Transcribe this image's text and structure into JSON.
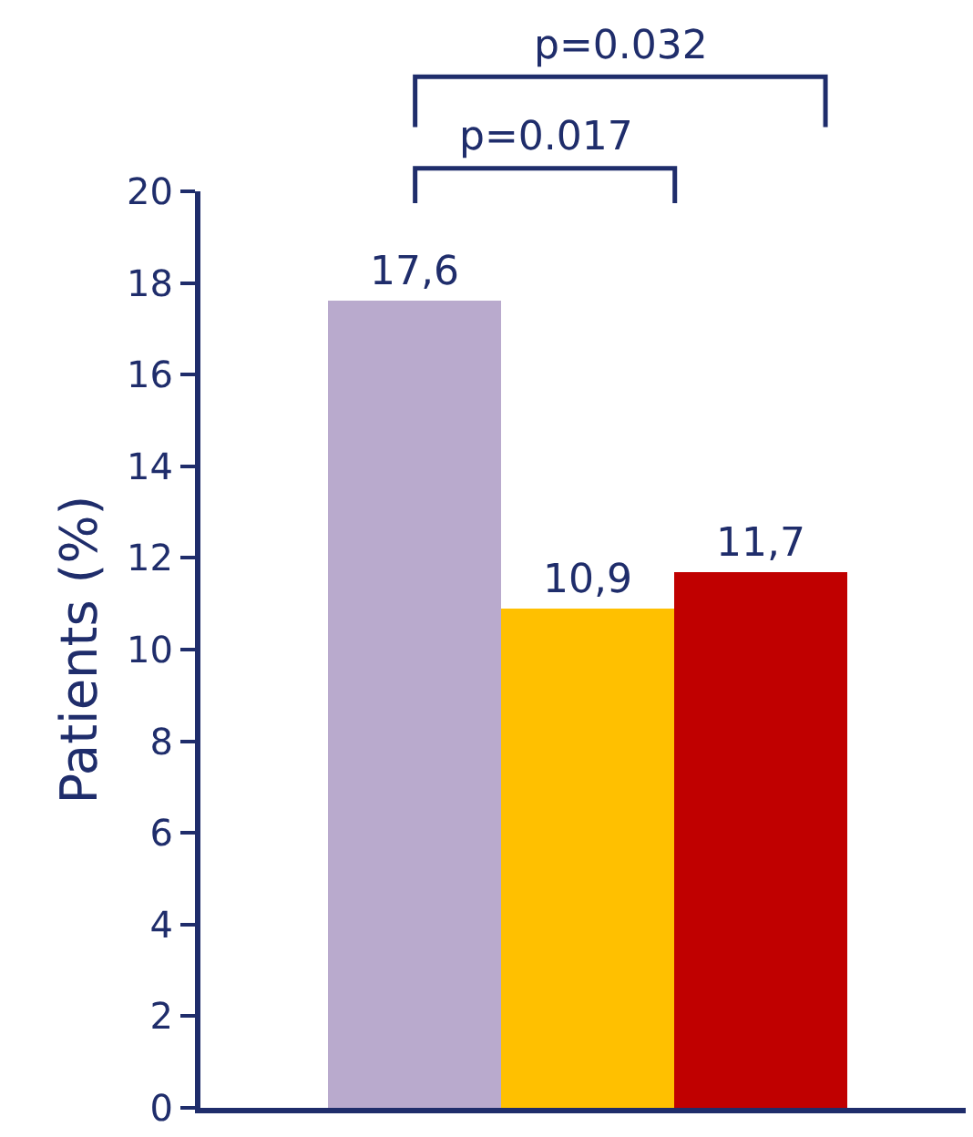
{
  "chart_data": {
    "type": "bar",
    "ylabel": "Patients (%)",
    "categories": [
      null,
      null,
      null
    ],
    "values": [
      17.6,
      10.9,
      11.7
    ],
    "value_labels": [
      "17,6",
      "10,9",
      "11,7"
    ],
    "colors": [
      "#b9aacd",
      "#ffc000",
      "#c00000"
    ],
    "ylim": [
      0,
      20
    ],
    "yticks": [
      0,
      2,
      4,
      6,
      8,
      10,
      12,
      14,
      16,
      18,
      20
    ],
    "annotations": [
      "p=0.017",
      "p=0.032"
    ]
  }
}
